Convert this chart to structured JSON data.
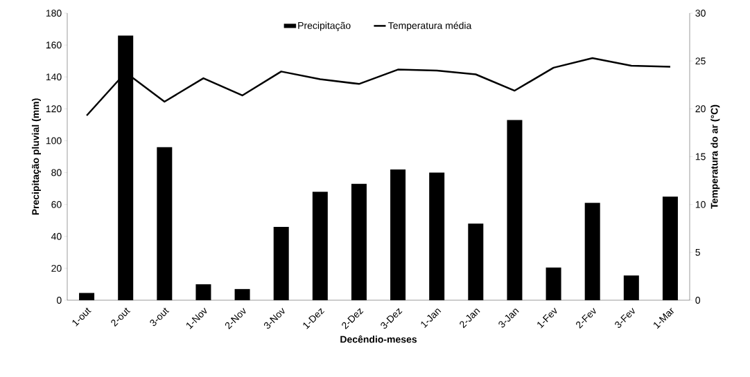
{
  "chart_data": {
    "type": "bar",
    "xlabel": "Decêndio-meses",
    "ylabel": "Precipitação pluvial (mm)",
    "y2label": "Temperatura do ar (°C)",
    "categories": [
      "1-out",
      "2-out",
      "3-out",
      "1-Nov",
      "2-Nov",
      "3-Nov",
      "1-Dez",
      "2-Dez",
      "3-Dez",
      "1-Jan",
      "2-Jan",
      "3-Jan",
      "1-Fev",
      "2-Fev",
      "3-Fev",
      "1-Mar"
    ],
    "ylim": [
      0,
      180
    ],
    "yticks": [
      0,
      20,
      40,
      60,
      80,
      100,
      120,
      140,
      160,
      180
    ],
    "y2lim": [
      0,
      30
    ],
    "y2ticks": [
      0,
      5,
      10,
      15,
      20,
      25,
      30
    ],
    "legend": "top",
    "series": [
      {
        "name": "Precipitação",
        "color": "#000000",
        "values": [
          4.5,
          166,
          96,
          10,
          7,
          46,
          68,
          73,
          82,
          80,
          48,
          113,
          20.5,
          61,
          15.5,
          65
        ]
      },
      {
        "name": "Temperatura média",
        "type": "line",
        "axis": "y2",
        "color": "#000000",
        "values": [
          19.3,
          23.8,
          20.75,
          23.2,
          21.4,
          23.9,
          23.1,
          22.6,
          24.1,
          24.0,
          23.6,
          21.9,
          24.3,
          25.3,
          24.5,
          24.4
        ]
      }
    ]
  }
}
